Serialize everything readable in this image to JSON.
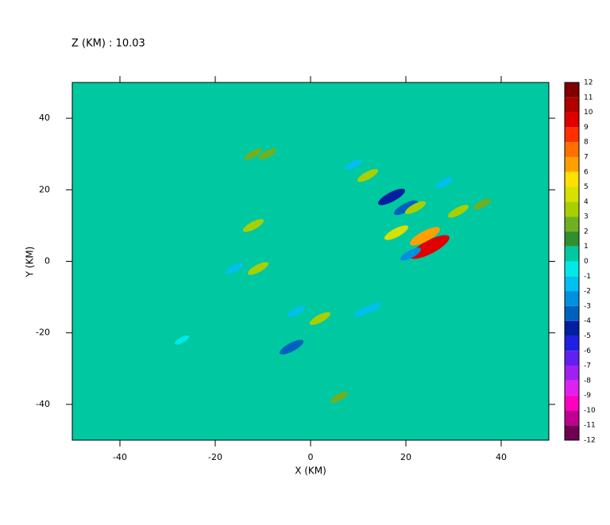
{
  "chart_data": {
    "type": "contour",
    "title": "Z (KM) : 10.03",
    "xlabel": "X (KM)",
    "ylabel": "Y (KM)",
    "xlim": [
      -50,
      50
    ],
    "ylim": [
      -50,
      50
    ],
    "xticks": [
      -40,
      -20,
      0,
      20,
      40
    ],
    "yticks": [
      -40,
      -20,
      0,
      20,
      40
    ],
    "background_level": 0,
    "levels": [
      -12,
      -11,
      -10,
      -9,
      -8,
      -7,
      -6,
      -5,
      -4,
      -3,
      -2,
      -1,
      0,
      1,
      2,
      3,
      4,
      5,
      6,
      7,
      8,
      9,
      10,
      11,
      12
    ],
    "colors": [
      "#700050",
      "#c00090",
      "#ff00c0",
      "#e020f0",
      "#a020f0",
      "#6020f0",
      "#2020e0",
      "#0020a0",
      "#0060c0",
      "#0090e0",
      "#00c0f0",
      "#00e8e8",
      "#00c8a0",
      "#309030",
      "#70b020",
      "#a8d000",
      "#d8e000",
      "#ffe000",
      "#ffa000",
      "#ff7000",
      "#ff3000",
      "#e00000",
      "#b00000",
      "#800000"
    ],
    "x": [
      25,
      24,
      17,
      20,
      12,
      22,
      36,
      -12,
      -11,
      -3,
      2,
      -4,
      11,
      13,
      -12,
      18,
      28,
      21,
      -27,
      31,
      9,
      -9,
      6,
      -16
    ],
    "y": [
      4,
      7,
      18,
      15,
      24,
      15,
      16,
      10,
      -2,
      -14,
      -16,
      -24,
      -14,
      -13,
      30,
      8,
      22,
      2,
      -22,
      14,
      27,
      30,
      -38,
      -2
    ],
    "values": [
      9,
      6,
      -5,
      -4,
      3,
      3,
      2,
      3,
      3,
      -2,
      3,
      -4,
      -2,
      -2,
      2,
      4,
      -2,
      -3,
      -1,
      3,
      -2,
      2,
      2,
      -2
    ]
  }
}
